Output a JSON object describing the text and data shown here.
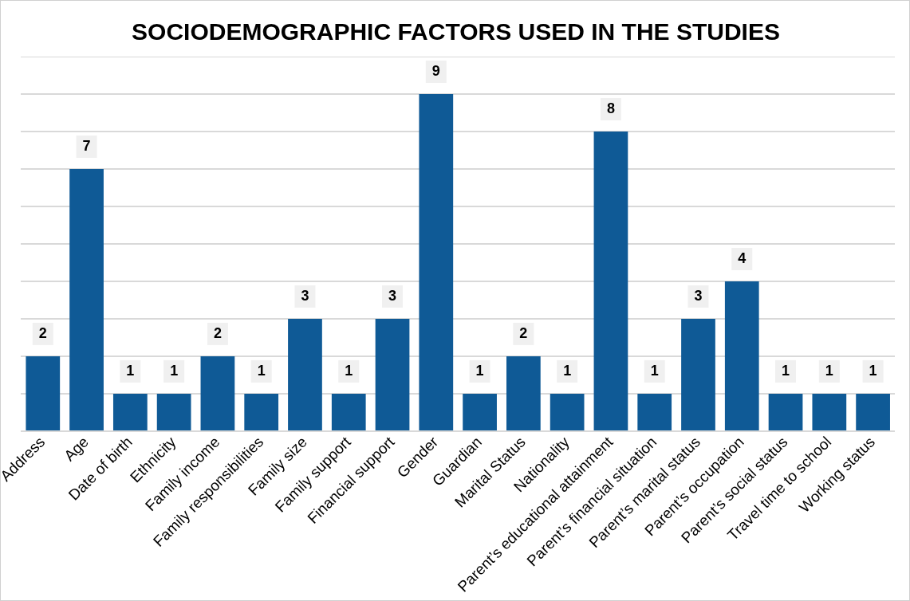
{
  "chart_data": {
    "type": "bar",
    "title": "SOCIODEMOGRAPHIC FACTORS USED IN THE STUDIES",
    "categories": [
      "Address",
      "Age",
      "Date of birth",
      "Ethnicity",
      "Family income",
      "Family responsibilities",
      "Family size",
      "Family support",
      "Financial support",
      "Gender",
      "Guardian",
      "Marital Status",
      "Nationality",
      "Parent’s educational attainment",
      "Parent’s financial situation",
      "Parent’s marital status",
      "Parent’s occupation",
      "Parent’s social status",
      "Travel time to school",
      "Working status"
    ],
    "values": [
      2,
      7,
      1,
      1,
      2,
      1,
      3,
      1,
      3,
      9,
      1,
      2,
      1,
      8,
      1,
      3,
      4,
      1,
      1,
      1
    ],
    "color": "#0f5a96",
    "ylim": [
      0,
      10
    ],
    "yticks": [
      {
        "value": 0,
        "label": null
      },
      {
        "value": 1,
        "label": null
      },
      {
        "value": 2,
        "label": null
      },
      {
        "value": 3,
        "label": null
      },
      {
        "value": 4,
        "label": null
      },
      {
        "value": 5,
        "label": null
      },
      {
        "value": 6,
        "label": null
      },
      {
        "value": 7,
        "label": null
      },
      {
        "value": 8,
        "label": null
      },
      {
        "value": 9,
        "label": null
      },
      {
        "value": 10,
        "label": null
      }
    ],
    "grid": "y",
    "tick_labels": "x",
    "data_labels": true,
    "legend": false
  }
}
